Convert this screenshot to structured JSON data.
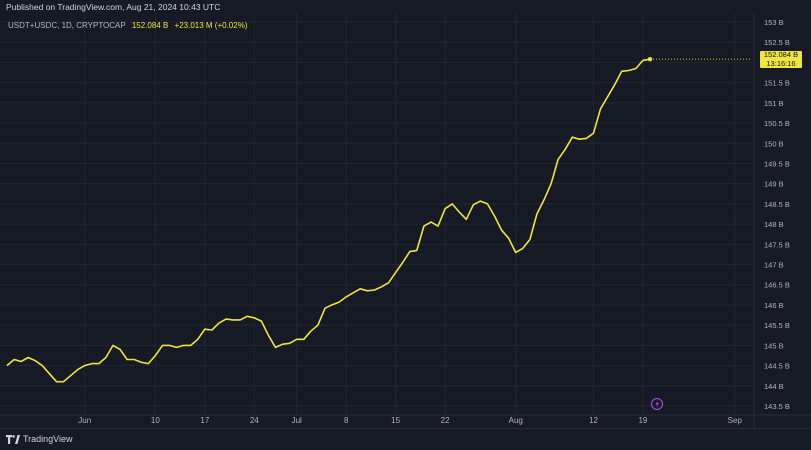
{
  "header": {
    "published": "Published on TradingView.com, Aug 21, 2024 10:43 UTC"
  },
  "legend": {
    "symbol": "USDT+USDC, 1D, CRYPTOCAP",
    "value": "152.084 B",
    "change": "+23.013 M (+0.02%)"
  },
  "price_tag": {
    "value": "152.084 B",
    "countdown": "13:16:16"
  },
  "footer": {
    "brand": "TradingView"
  },
  "colors": {
    "line": "#f0e442",
    "background": "#161a25",
    "grid": "#232733",
    "axis_text": "#b2b5be"
  },
  "chart_data": {
    "type": "line",
    "title": "",
    "xlabel": "",
    "ylabel": "",
    "ylim": [
      143.3,
      153.1
    ],
    "x_ticks": [
      {
        "label": "Jun",
        "day": 23
      },
      {
        "label": "10",
        "day": 33
      },
      {
        "label": "17",
        "day": 40
      },
      {
        "label": "24",
        "day": 47
      },
      {
        "label": "Jul",
        "day": 53
      },
      {
        "label": "8",
        "day": 60
      },
      {
        "label": "15",
        "day": 67
      },
      {
        "label": "22",
        "day": 74
      },
      {
        "label": "Aug",
        "day": 84
      },
      {
        "label": "12",
        "day": 95
      },
      {
        "label": "19",
        "day": 102
      },
      {
        "label": "Sep",
        "day": 115
      }
    ],
    "y_ticks": [
      "143.5 B",
      "144 B",
      "144.5 B",
      "145 B",
      "145.5 B",
      "146 B",
      "146.5 B",
      "147 B",
      "147.5 B",
      "148 B",
      "148.5 B",
      "149 B",
      "149.5 B",
      "150 B",
      "150.5 B",
      "151 B",
      "151.5 B",
      "152 B",
      "152.5 B",
      "153 B"
    ],
    "y_tick_values": [
      143.5,
      144,
      144.5,
      145,
      145.5,
      146,
      146.5,
      147,
      147.5,
      148,
      148.5,
      149,
      149.5,
      150,
      150.5,
      151,
      151.5,
      152,
      152.5,
      153
    ],
    "x_range": [
      12,
      120
    ],
    "series": [
      {
        "values": [
          [
            12,
            144.5
          ],
          [
            13,
            144.65
          ],
          [
            14,
            144.6
          ],
          [
            15,
            144.7
          ],
          [
            16,
            144.62
          ],
          [
            17,
            144.5
          ],
          [
            18,
            144.3
          ],
          [
            19,
            144.1
          ],
          [
            20,
            144.1
          ],
          [
            21,
            144.25
          ],
          [
            22,
            144.4
          ],
          [
            23,
            144.5
          ],
          [
            24,
            144.55
          ],
          [
            25,
            144.55
          ],
          [
            26,
            144.7
          ],
          [
            27,
            145.0
          ],
          [
            28,
            144.9
          ],
          [
            29,
            144.65
          ],
          [
            30,
            144.65
          ],
          [
            31,
            144.58
          ],
          [
            32,
            144.55
          ],
          [
            33,
            144.75
          ],
          [
            34,
            145.0
          ],
          [
            35,
            145.0
          ],
          [
            36,
            144.95
          ],
          [
            37,
            145.0
          ],
          [
            38,
            145.0
          ],
          [
            39,
            145.15
          ],
          [
            40,
            145.4
          ],
          [
            41,
            145.38
          ],
          [
            42,
            145.55
          ],
          [
            43,
            145.65
          ],
          [
            44,
            145.63
          ],
          [
            45,
            145.63
          ],
          [
            46,
            145.72
          ],
          [
            47,
            145.68
          ],
          [
            48,
            145.6
          ],
          [
            49,
            145.25
          ],
          [
            50,
            144.95
          ],
          [
            51,
            145.03
          ],
          [
            52,
            145.05
          ],
          [
            53,
            145.15
          ],
          [
            54,
            145.15
          ],
          [
            55,
            145.35
          ],
          [
            56,
            145.5
          ],
          [
            57,
            145.92
          ],
          [
            58,
            146.0
          ],
          [
            59,
            146.07
          ],
          [
            60,
            146.2
          ],
          [
            61,
            146.3
          ],
          [
            62,
            146.4
          ],
          [
            63,
            146.35
          ],
          [
            64,
            146.37
          ],
          [
            65,
            146.45
          ],
          [
            66,
            146.55
          ],
          [
            67,
            146.8
          ],
          [
            68,
            147.05
          ],
          [
            69,
            147.32
          ],
          [
            70,
            147.35
          ],
          [
            71,
            147.95
          ],
          [
            72,
            148.05
          ],
          [
            73,
            147.95
          ],
          [
            74,
            148.38
          ],
          [
            75,
            148.5
          ],
          [
            76,
            148.3
          ],
          [
            77,
            148.12
          ],
          [
            78,
            148.48
          ],
          [
            79,
            148.57
          ],
          [
            80,
            148.5
          ],
          [
            81,
            148.2
          ],
          [
            82,
            147.85
          ],
          [
            83,
            147.65
          ],
          [
            84,
            147.3
          ],
          [
            85,
            147.4
          ],
          [
            86,
            147.62
          ],
          [
            87,
            148.25
          ],
          [
            88,
            148.6
          ],
          [
            89,
            149.0
          ],
          [
            90,
            149.6
          ],
          [
            91,
            149.85
          ],
          [
            92,
            150.15
          ],
          [
            93,
            150.1
          ],
          [
            94,
            150.12
          ],
          [
            95,
            150.25
          ],
          [
            96,
            150.85
          ],
          [
            97,
            151.15
          ],
          [
            98,
            151.45
          ],
          [
            99,
            151.78
          ],
          [
            100,
            151.8
          ],
          [
            101,
            151.85
          ],
          [
            102,
            152.05
          ],
          [
            103,
            152.08
          ]
        ]
      }
    ]
  }
}
